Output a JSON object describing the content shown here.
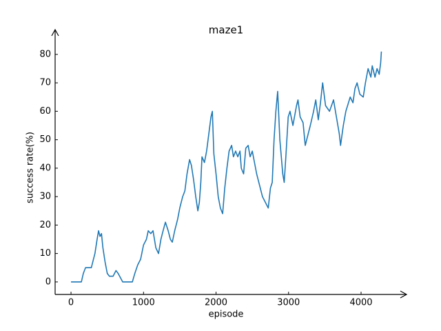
{
  "chart_data": {
    "type": "line",
    "title": "maze1",
    "x_label": "episode",
    "y_label": "success rate(%)",
    "color": "#1f77b4",
    "x": [
      0,
      143,
      170,
      200,
      230,
      280,
      300,
      330,
      360,
      380,
      400,
      420,
      440,
      470,
      500,
      530,
      580,
      620,
      650,
      713,
      800,
      846,
      880,
      920,
      960,
      1000,
      1040,
      1065,
      1100,
      1131,
      1170,
      1207,
      1240,
      1270,
      1302,
      1340,
      1370,
      1397,
      1430,
      1470,
      1500,
      1540,
      1570,
      1600,
      1635,
      1660,
      1690,
      1720,
      1749,
      1770,
      1790,
      1806,
      1840,
      1870,
      1900,
      1930,
      1949,
      1970,
      2000,
      2030,
      2060,
      2091,
      2120,
      2150,
      2180,
      2215,
      2240,
      2270,
      2300,
      2330,
      2348,
      2380,
      2410,
      2443,
      2470,
      2500,
      2530,
      2560,
      2600,
      2640,
      2680,
      2720,
      2750,
      2775,
      2800,
      2825,
      2850,
      2880,
      2920,
      2940,
      2965,
      2995,
      3020,
      3060,
      3110,
      3130,
      3160,
      3200,
      3230,
      3270,
      3300,
      3345,
      3375,
      3410,
      3440,
      3470,
      3510,
      3565,
      3620,
      3660,
      3700,
      3717,
      3755,
      3790,
      3850,
      3888,
      3916,
      3945,
      3983,
      4030,
      4060,
      4097,
      4135,
      4154,
      4192,
      4220,
      4250,
      4270,
      4280
    ],
    "values": [
      0,
      0,
      3,
      5,
      5,
      5,
      7,
      10,
      15,
      18,
      16,
      17,
      12,
      7,
      3,
      2,
      2,
      4,
      3,
      0,
      0,
      0,
      3,
      6,
      8,
      13,
      15,
      18,
      17,
      18,
      12,
      10,
      15,
      18,
      21,
      18,
      15,
      14,
      18,
      22,
      26,
      30,
      32,
      38,
      43,
      41,
      36,
      30,
      25,
      28,
      35,
      44,
      42,
      46,
      52,
      58,
      60,
      45,
      38,
      30,
      26,
      24,
      33,
      40,
      46,
      48,
      44,
      46,
      44,
      46,
      40,
      38,
      47,
      48,
      44,
      46,
      42,
      38,
      34,
      30,
      28,
      26,
      33,
      35,
      50,
      60,
      67,
      50,
      38,
      35,
      45,
      58,
      60,
      55,
      62,
      64,
      58,
      56,
      48,
      52,
      55,
      60,
      64,
      57,
      63,
      70,
      62,
      60,
      64,
      58,
      52,
      48,
      55,
      60,
      65,
      63,
      68,
      70,
      66,
      65,
      70,
      75,
      72,
      76,
      72,
      75,
      73,
      77,
      81
    ],
    "xlim": [
      -219,
      4627
    ],
    "ylim": [
      -4.4,
      88.7
    ],
    "xticks": [
      0,
      1000,
      2000,
      3000,
      4000
    ],
    "yticks": [
      0,
      10,
      20,
      30,
      40,
      50,
      60,
      70,
      80
    ]
  }
}
